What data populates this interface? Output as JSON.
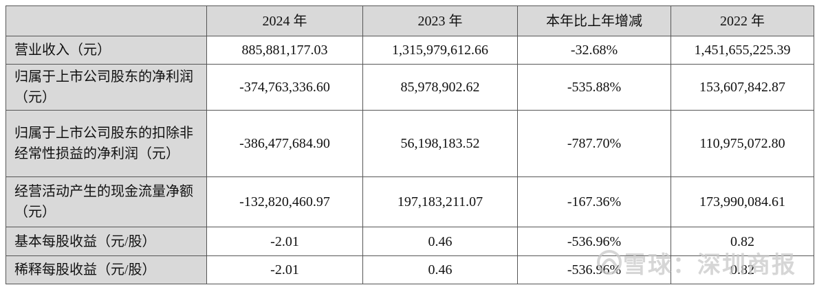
{
  "table": {
    "header": [
      "",
      "2024 年",
      "2023 年",
      "本年比上年增减",
      "2022 年"
    ],
    "rows": [
      [
        "营业收入（元）",
        "885,881,177.03",
        "1,315,979,612.66",
        "-32.68%",
        "1,451,655,225.39"
      ],
      [
        "归属于上市公司股东的净利润（元）",
        "-374,763,336.60",
        "85,978,902.62",
        "-535.88%",
        "153,607,842.87"
      ],
      [
        "归属于上市公司股东的扣除非经常性损益的净利润（元）",
        "-386,477,684.90",
        "56,198,183.52",
        "-787.70%",
        "110,975,072.80"
      ],
      [
        "经营活动产生的现金流量净额（元）",
        "-132,820,460.97",
        "197,183,211.07",
        "-167.36%",
        "173,990,084.61"
      ],
      [
        "基本每股收益（元/股）",
        "-2.01",
        "0.46",
        "-536.96%",
        "0.82"
      ],
      [
        "稀释每股收益（元/股）",
        "-2.01",
        "0.46",
        "-536.96%",
        "0.82"
      ]
    ]
  },
  "watermark": "雪球：深圳商报"
}
